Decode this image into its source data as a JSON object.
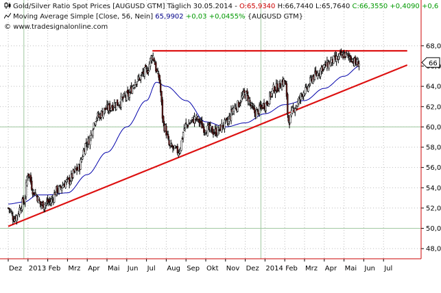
{
  "legend": {
    "price_name": "Gold/Silver Ratio Spot Prices [AUGUSD GTM]",
    "price_interval": "Täglich",
    "price_date": "30.05.2014",
    "price_open": "O:65,9340",
    "price_high": "H:66,7440",
    "price_low": "L:65,7640",
    "price_close": "C:66,3550",
    "price_change": "+0,4090",
    "price_change_pct": "+0,6",
    "ma_name": "Moving Average Simple [Close, 56, Nein]",
    "ma_value": "65,9902",
    "ma_change": "+0,03",
    "ma_change_pct": "+0,0455%",
    "ma_symbol": "{AUGUSD GTM}",
    "source": "www.tradesignalonline.com"
  },
  "current_price_label": "66",
  "colors": {
    "up_candle": "#ffffff",
    "down_candle": "#6b1a1a",
    "trendline": "#dd1111",
    "moving_average": "#0000aa",
    "grid": "#bbbbbb",
    "axis": "#cc0000"
  },
  "chart_data": {
    "type": "candlestick",
    "ylim": [
      47,
      68.8
    ],
    "y_ticks": [
      "48,0",
      "50,0",
      "52,0",
      "54,0",
      "56,0",
      "58,0",
      "60,0",
      "62,0",
      "64,0",
      "66,0",
      "68,0"
    ],
    "x_labels": [
      "Dez",
      "2013",
      "Feb",
      "Mrz",
      "Apr",
      "Mai",
      "Jun",
      "Jul",
      "Aug",
      "Sep",
      "Okt",
      "Nov",
      "Dez",
      "2014",
      "Feb",
      "Mrz",
      "Apr",
      "Mai",
      "Jun",
      "Jul"
    ],
    "close_series": {
      "name": "Gold/Silver Ratio Spot Prices",
      "knots": [
        {
          "x": 0.0,
          "y": 52.0
        },
        {
          "x": 0.3,
          "y": 51.0
        },
        {
          "x": 0.8,
          "y": 52.6
        },
        {
          "x": 1.0,
          "y": 55.4
        },
        {
          "x": 1.3,
          "y": 53.6
        },
        {
          "x": 1.7,
          "y": 52.3
        },
        {
          "x": 2.1,
          "y": 52.6
        },
        {
          "x": 2.5,
          "y": 53.8
        },
        {
          "x": 3.0,
          "y": 54.6
        },
        {
          "x": 3.5,
          "y": 55.8
        },
        {
          "x": 4.0,
          "y": 58.5
        },
        {
          "x": 4.5,
          "y": 61.0
        },
        {
          "x": 5.0,
          "y": 61.8
        },
        {
          "x": 5.5,
          "y": 62.3
        },
        {
          "x": 6.0,
          "y": 63.0
        },
        {
          "x": 6.5,
          "y": 64.6
        },
        {
          "x": 7.0,
          "y": 65.5
        },
        {
          "x": 7.3,
          "y": 67.0
        },
        {
          "x": 7.6,
          "y": 65.0
        },
        {
          "x": 7.9,
          "y": 60.0
        },
        {
          "x": 8.2,
          "y": 58.0
        },
        {
          "x": 8.6,
          "y": 57.6
        },
        {
          "x": 9.0,
          "y": 60.2
        },
        {
          "x": 9.5,
          "y": 60.8
        },
        {
          "x": 10.0,
          "y": 59.8
        },
        {
          "x": 10.5,
          "y": 59.5
        },
        {
          "x": 11.0,
          "y": 60.3
        },
        {
          "x": 11.5,
          "y": 62.0
        },
        {
          "x": 12.0,
          "y": 63.2
        },
        {
          "x": 12.5,
          "y": 61.4
        },
        {
          "x": 13.0,
          "y": 62.2
        },
        {
          "x": 13.5,
          "y": 63.8
        },
        {
          "x": 14.0,
          "y": 64.5
        },
        {
          "x": 14.2,
          "y": 60.6
        },
        {
          "x": 14.5,
          "y": 62.0
        },
        {
          "x": 15.0,
          "y": 63.5
        },
        {
          "x": 15.5,
          "y": 65.0
        },
        {
          "x": 16.0,
          "y": 66.0
        },
        {
          "x": 16.5,
          "y": 66.6
        },
        {
          "x": 17.0,
          "y": 67.1
        },
        {
          "x": 17.3,
          "y": 66.9
        },
        {
          "x": 17.6,
          "y": 66.3
        },
        {
          "x": 17.8,
          "y": 66.35
        }
      ]
    },
    "moving_average": {
      "name": "Moving Average Simple [Close, 56, Nein]",
      "knots": [
        {
          "x": 0.0,
          "y": 52.4
        },
        {
          "x": 0.8,
          "y": 52.6
        },
        {
          "x": 1.5,
          "y": 53.3
        },
        {
          "x": 2.0,
          "y": 53.3
        },
        {
          "x": 3.0,
          "y": 53.5
        },
        {
          "x": 4.0,
          "y": 55.3
        },
        {
          "x": 5.0,
          "y": 57.5
        },
        {
          "x": 6.0,
          "y": 60.0
        },
        {
          "x": 7.0,
          "y": 62.6
        },
        {
          "x": 7.5,
          "y": 64.4
        },
        {
          "x": 8.0,
          "y": 64.0
        },
        {
          "x": 9.0,
          "y": 62.6
        },
        {
          "x": 10.0,
          "y": 60.5
        },
        {
          "x": 11.0,
          "y": 60.0
        },
        {
          "x": 12.0,
          "y": 60.4
        },
        {
          "x": 13.0,
          "y": 61.3
        },
        {
          "x": 14.0,
          "y": 62.2
        },
        {
          "x": 15.0,
          "y": 62.6
        },
        {
          "x": 16.0,
          "y": 63.8
        },
        {
          "x": 17.0,
          "y": 65.0
        },
        {
          "x": 17.8,
          "y": 65.99
        }
      ]
    },
    "trendlines": [
      {
        "name": "support",
        "from": {
          "x": 0.0,
          "y": 50.2
        },
        "to": {
          "x": 20.2,
          "y": 66.1
        }
      },
      {
        "name": "resistance",
        "from": {
          "x": 7.3,
          "y": 67.5
        },
        "to": {
          "x": 20.2,
          "y": 67.5
        }
      }
    ]
  }
}
